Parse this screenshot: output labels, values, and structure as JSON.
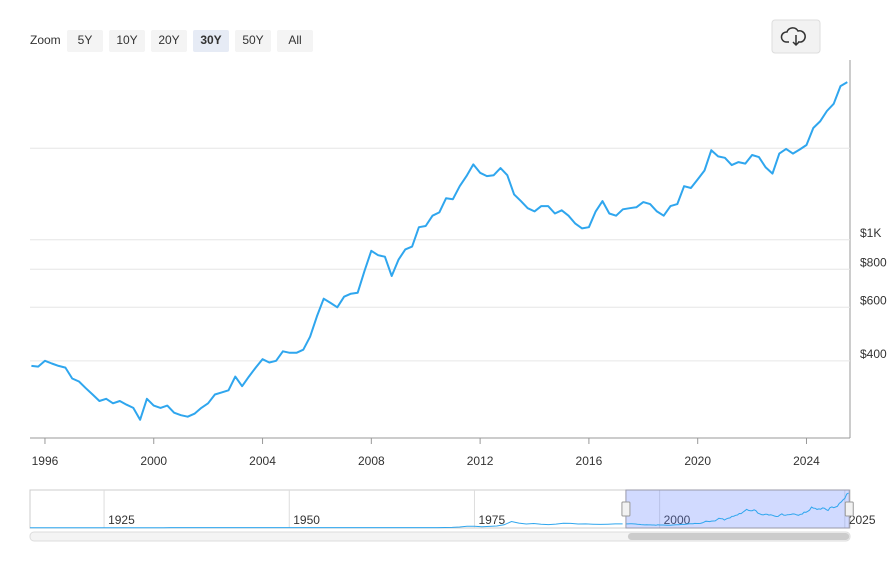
{
  "chart_data": {
    "type": "line",
    "zoom": {
      "label": "Zoom",
      "buttons": [
        "5Y",
        "10Y",
        "20Y",
        "30Y",
        "50Y",
        "All"
      ],
      "selected": 3
    },
    "x": [
      1995.5,
      1995.75,
      1996,
      1996.25,
      1996.5,
      1996.75,
      1997,
      1997.25,
      1997.5,
      1997.75,
      1998,
      1998.25,
      1998.5,
      1998.75,
      1999,
      1999.25,
      1999.5,
      1999.75,
      2000,
      2000.25,
      2000.5,
      2000.75,
      2001,
      2001.25,
      2001.5,
      2001.75,
      2002,
      2002.25,
      2002.5,
      2002.75,
      2003,
      2003.25,
      2003.5,
      2003.75,
      2004,
      2004.25,
      2004.5,
      2004.75,
      2005,
      2005.25,
      2005.5,
      2005.75,
      2006,
      2006.25,
      2006.5,
      2006.75,
      2007,
      2007.25,
      2007.5,
      2007.75,
      2008,
      2008.25,
      2008.5,
      2008.75,
      2009,
      2009.25,
      2009.5,
      2009.75,
      2010,
      2010.25,
      2010.5,
      2010.75,
      2011,
      2011.25,
      2011.5,
      2011.75,
      2012,
      2012.25,
      2012.5,
      2012.75,
      2013,
      2013.25,
      2013.5,
      2013.75,
      2014,
      2014.25,
      2014.5,
      2014.75,
      2015,
      2015.25,
      2015.5,
      2015.75,
      2016,
      2016.25,
      2016.5,
      2016.75,
      2017,
      2017.25,
      2017.5,
      2017.75,
      2018,
      2018.25,
      2018.5,
      2018.75,
      2019,
      2019.25,
      2019.5,
      2019.75,
      2020,
      2020.25,
      2020.5,
      2020.75,
      2021,
      2021.25,
      2021.5,
      2021.75,
      2022,
      2022.25,
      2022.5,
      2022.75,
      2023,
      2023.25,
      2023.5,
      2023.75,
      2024,
      2024.25,
      2024.5,
      2024.75,
      2025,
      2025.25,
      2025.5
    ],
    "values": [
      385,
      383,
      400,
      392,
      385,
      380,
      350,
      342,
      325,
      310,
      295,
      300,
      290,
      295,
      287,
      280,
      256,
      300,
      285,
      280,
      285,
      270,
      265,
      262,
      268,
      280,
      290,
      310,
      315,
      320,
      355,
      330,
      355,
      380,
      405,
      395,
      400,
      430,
      425,
      425,
      435,
      480,
      560,
      640,
      620,
      600,
      650,
      665,
      670,
      790,
      920,
      890,
      880,
      760,
      860,
      930,
      950,
      1100,
      1110,
      1200,
      1230,
      1370,
      1360,
      1500,
      1620,
      1770,
      1660,
      1620,
      1630,
      1720,
      1630,
      1410,
      1340,
      1270,
      1240,
      1290,
      1290,
      1220,
      1250,
      1200,
      1130,
      1090,
      1100,
      1240,
      1340,
      1220,
      1200,
      1260,
      1270,
      1280,
      1330,
      1310,
      1240,
      1200,
      1290,
      1310,
      1500,
      1480,
      1580,
      1690,
      1970,
      1880,
      1860,
      1760,
      1800,
      1780,
      1900,
      1870,
      1730,
      1650,
      1920,
      1990,
      1920,
      1980,
      2050,
      2330,
      2450,
      2650,
      2800,
      3200,
      3300
    ],
    "color": "#2fa6ee",
    "log_scale": true,
    "xlim": [
      1995.45,
      2025.6
    ],
    "xticks": [
      1996,
      2000,
      2004,
      2008,
      2012,
      2016,
      2020,
      2024
    ],
    "ylim": [
      223,
      3900
    ],
    "yticks": [
      {
        "value": 400,
        "label": "$400"
      },
      {
        "value": 600,
        "label": "$600"
      },
      {
        "value": 800,
        "label": "$800"
      },
      {
        "value": 1000,
        "label": "$1K"
      }
    ],
    "ygrid": [
      2000
    ],
    "grid": true,
    "navigator": {
      "x": [
        1915,
        1933,
        1934,
        1960,
        1968,
        1970,
        1972,
        1973,
        1974,
        1975,
        1976,
        1977,
        1978,
        1979,
        1980,
        1981,
        1982,
        1983,
        1984,
        1985,
        1986,
        1987,
        1988,
        1989,
        1990,
        1991,
        1992,
        1993,
        1994,
        1995
      ],
      "values": [
        20,
        20,
        35,
        35,
        39,
        36,
        58,
        97,
        159,
        161,
        125,
        148,
        193,
        306,
        612,
        460,
        376,
        424,
        361,
        317,
        368,
        447,
        437,
        381,
        383,
        362,
        343,
        360,
        384,
        384
      ],
      "xlim": [
        1915,
        2025.7
      ],
      "ylim": [
        0,
        3400
      ],
      "xticks": [
        1925,
        1950,
        1975,
        2000,
        2025
      ]
    }
  }
}
